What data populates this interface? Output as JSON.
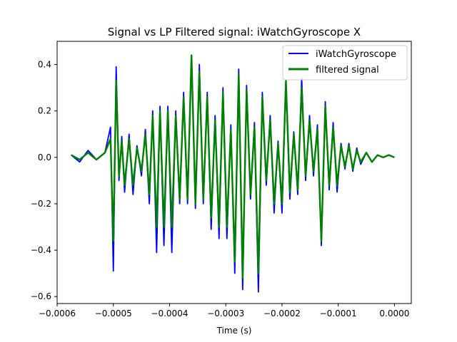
{
  "chart_data": {
    "type": "line",
    "title": "Signal vs LP Filtered signal: iWatchGyroscope X",
    "xlabel": "Time (s)",
    "ylabel": "",
    "xlim": [
      -0.0006,
      3e-05
    ],
    "ylim": [
      -0.63,
      0.5
    ],
    "x_ticks": [
      -0.0006,
      -0.0005,
      -0.0004,
      -0.0003,
      -0.0002,
      -0.0001,
      0.0
    ],
    "x_tick_labels": [
      "−0.0006",
      "−0.0005",
      "−0.0004",
      "−0.0003",
      "−0.0002",
      "−0.0001",
      "0.0000"
    ],
    "y_ticks": [
      0.4,
      0.2,
      0.0,
      -0.2,
      -0.4,
      -0.6
    ],
    "y_tick_labels": [
      "0.4",
      "0.2",
      "0.0",
      "−0.2",
      "−0.4",
      "−0.6"
    ],
    "grid": false,
    "legend_position": "upper right",
    "series": [
      {
        "name": "iWatchGyroscope",
        "color": "#0000ff",
        "x": [
          -0.000575,
          -0.00056,
          -0.000545,
          -0.00053,
          -0.000515,
          -0.000505,
          -0.0005,
          -0.000495,
          -0.00049,
          -0.000485,
          -0.00048,
          -0.000472,
          -0.000465,
          -0.000458,
          -0.00045,
          -0.000443,
          -0.000436,
          -0.00043,
          -0.000423,
          -0.000417,
          -0.00041,
          -0.000403,
          -0.000396,
          -0.000389,
          -0.000382,
          -0.000375,
          -0.000368,
          -0.000361,
          -0.000354,
          -0.000347,
          -0.00034,
          -0.000333,
          -0.000326,
          -0.000319,
          -0.000312,
          -0.000305,
          -0.000298,
          -0.000291,
          -0.000284,
          -0.000277,
          -0.00027,
          -0.000263,
          -0.000256,
          -0.000249,
          -0.000242,
          -0.000235,
          -0.000228,
          -0.000221,
          -0.000214,
          -0.000207,
          -0.0002,
          -0.000193,
          -0.000186,
          -0.000179,
          -0.000172,
          -0.000165,
          -0.000158,
          -0.000151,
          -0.000144,
          -0.000137,
          -0.00013,
          -0.000123,
          -0.000116,
          -0.000109,
          -0.000102,
          -9.5e-05,
          -8.8e-05,
          -8.1e-05,
          -7.4e-05,
          -6.7e-05,
          -6e-05,
          -5e-05,
          -4e-05,
          -3e-05,
          -2e-05,
          -1e-05,
          0.0
        ],
        "y": [
          0.01,
          -0.02,
          0.03,
          -0.01,
          0.02,
          0.13,
          -0.49,
          0.39,
          -0.1,
          0.09,
          -0.15,
          0.1,
          -0.16,
          0.05,
          -0.08,
          0.12,
          -0.2,
          0.2,
          -0.41,
          0.22,
          -0.38,
          0.22,
          -0.41,
          0.2,
          -0.2,
          0.28,
          -0.2,
          0.44,
          -0.22,
          0.4,
          -0.2,
          0.28,
          -0.31,
          0.18,
          -0.35,
          0.3,
          -0.35,
          0.14,
          -0.5,
          0.38,
          -0.57,
          0.31,
          -0.18,
          0.15,
          -0.58,
          0.28,
          -0.12,
          0.18,
          -0.24,
          0.07,
          -0.24,
          0.33,
          -0.18,
          0.11,
          -0.16,
          0.34,
          -0.1,
          0.18,
          -0.08,
          0.14,
          -0.38,
          0.24,
          -0.14,
          0.15,
          -0.15,
          0.06,
          -0.05,
          0.06,
          -0.06,
          0.04,
          -0.03,
          0.02,
          -0.02,
          0.01,
          0.0,
          0.01,
          0.0
        ]
      },
      {
        "name": "filtered signal",
        "color": "#008000",
        "x": [
          -0.000575,
          -0.00056,
          -0.000545,
          -0.00053,
          -0.000515,
          -0.000505,
          -0.0005,
          -0.000495,
          -0.00049,
          -0.000485,
          -0.00048,
          -0.000472,
          -0.000465,
          -0.000458,
          -0.00045,
          -0.000443,
          -0.000436,
          -0.00043,
          -0.000423,
          -0.000417,
          -0.00041,
          -0.000403,
          -0.000396,
          -0.000389,
          -0.000382,
          -0.000375,
          -0.000368,
          -0.000361,
          -0.000354,
          -0.000347,
          -0.00034,
          -0.000333,
          -0.000326,
          -0.000319,
          -0.000312,
          -0.000305,
          -0.000298,
          -0.000291,
          -0.000284,
          -0.000277,
          -0.00027,
          -0.000263,
          -0.000256,
          -0.000249,
          -0.000242,
          -0.000235,
          -0.000228,
          -0.000221,
          -0.000214,
          -0.000207,
          -0.0002,
          -0.000193,
          -0.000186,
          -0.000179,
          -0.000172,
          -0.000165,
          -0.000158,
          -0.000151,
          -0.000144,
          -0.000137,
          -0.00013,
          -0.000123,
          -0.000116,
          -0.000109,
          -0.000102,
          -9.5e-05,
          -8.8e-05,
          -8.1e-05,
          -7.4e-05,
          -6.7e-05,
          -6e-05,
          -5e-05,
          -4e-05,
          -3e-05,
          -2e-05,
          -1e-05,
          0.0
        ],
        "y": [
          0.01,
          -0.01,
          0.02,
          -0.01,
          0.02,
          0.08,
          -0.36,
          0.33,
          -0.08,
          0.07,
          -0.12,
          0.08,
          -0.12,
          0.04,
          -0.06,
          0.1,
          -0.16,
          0.18,
          -0.3,
          0.2,
          -0.3,
          0.2,
          -0.3,
          0.18,
          -0.18,
          0.26,
          -0.18,
          0.44,
          -0.2,
          0.37,
          -0.18,
          0.26,
          -0.26,
          0.16,
          -0.3,
          0.28,
          -0.3,
          0.12,
          -0.45,
          0.36,
          -0.52,
          0.29,
          -0.16,
          0.13,
          -0.5,
          0.26,
          -0.1,
          0.16,
          -0.2,
          0.06,
          -0.2,
          0.33,
          -0.15,
          0.1,
          -0.14,
          0.3,
          -0.08,
          0.16,
          -0.06,
          0.12,
          -0.36,
          0.22,
          -0.12,
          0.13,
          -0.12,
          0.05,
          -0.04,
          0.05,
          -0.05,
          0.03,
          -0.02,
          0.02,
          -0.02,
          0.01,
          0.0,
          0.01,
          0.0
        ]
      }
    ]
  }
}
